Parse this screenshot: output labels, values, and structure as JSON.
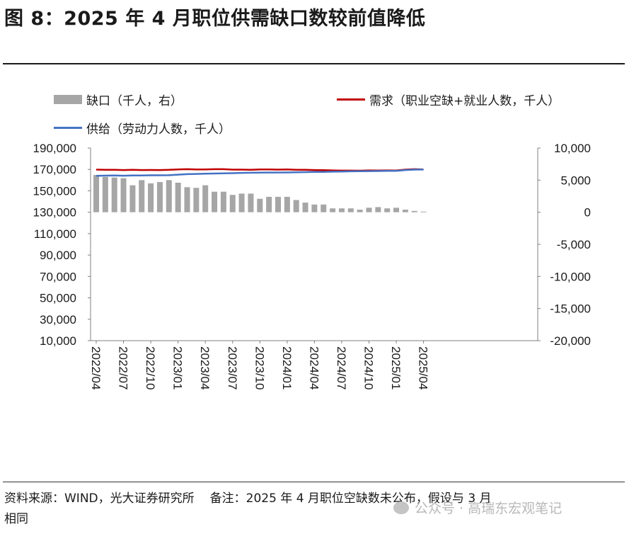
{
  "title": "图 8：2025 年 4 月职位供需缺口数较前值降低",
  "footnote": {
    "source": "资料来源：WIND，光大证券研究所",
    "note_line1": "备注：2025 年 4 月职位空缺数未公布，假设与 3 月",
    "note_line2": "相同"
  },
  "watermark": "公众号 · 高瑞东宏观笔记",
  "colors": {
    "gap": "#a6a6a6",
    "demand": "#c00000",
    "supply": "#4472c4"
  },
  "chart_data": {
    "type": "bar+line",
    "legend": [
      {
        "key": "gap",
        "label": "缺口（千人，右）",
        "kind": "bar"
      },
      {
        "key": "demand",
        "label": "需求（职业空缺+就业人数，千人）",
        "kind": "line"
      },
      {
        "key": "supply",
        "label": "供给（劳动力人数，千人）",
        "kind": "line"
      }
    ],
    "x_tick_labels": [
      "2022/04",
      "2022/07",
      "2022/10",
      "2023/01",
      "2023/04",
      "2023/07",
      "2023/10",
      "2024/01",
      "2024/04",
      "2024/07",
      "2024/10",
      "2025/01",
      "2025/04"
    ],
    "x": [
      "2022/04",
      "2022/05",
      "2022/06",
      "2022/07",
      "2022/08",
      "2022/09",
      "2022/10",
      "2022/11",
      "2022/12",
      "2023/01",
      "2023/02",
      "2023/03",
      "2023/04",
      "2023/05",
      "2023/06",
      "2023/07",
      "2023/08",
      "2023/09",
      "2023/10",
      "2023/11",
      "2023/12",
      "2024/01",
      "2024/02",
      "2024/03",
      "2024/04",
      "2024/05",
      "2024/06",
      "2024/07",
      "2024/08",
      "2024/09",
      "2024/10",
      "2024/11",
      "2024/12",
      "2025/01",
      "2025/02",
      "2025/03",
      "2025/04"
    ],
    "y_left": {
      "range": [
        10000,
        190000
      ],
      "ticks": [
        190000,
        170000,
        150000,
        130000,
        110000,
        90000,
        70000,
        50000,
        30000,
        10000
      ],
      "tick_labels": [
        "190,000",
        "170,000",
        "150,000",
        "130,000",
        "110,000",
        "90,000",
        "70,000",
        "50,000",
        "30,000",
        "10,000"
      ]
    },
    "y_right": {
      "range": [
        -20000,
        10000
      ],
      "ticks": [
        10000,
        5000,
        0,
        -5000,
        -10000,
        -15000,
        -20000
      ],
      "tick_labels": [
        "10,000",
        "5,000",
        "0",
        "-5,000",
        "-10,000",
        "-15,000",
        "-20,000"
      ]
    },
    "series": [
      {
        "name": "缺口（千人，右）",
        "axis": "right",
        "kind": "bar",
        "values": [
          5800,
          5500,
          5400,
          5300,
          4200,
          5000,
          4500,
          4700,
          5000,
          4600,
          3900,
          3800,
          4200,
          3200,
          3200,
          2700,
          2900,
          2900,
          2100,
          2400,
          2400,
          2400,
          1900,
          1500,
          1200,
          1200,
          600,
          600,
          600,
          400,
          700,
          800,
          600,
          700,
          400,
          200,
          100
        ]
      },
      {
        "name": "需求（职业空缺+就业人数，千人）",
        "axis": "left",
        "kind": "line",
        "values": [
          169800,
          169700,
          169700,
          169400,
          169600,
          169400,
          169500,
          169400,
          169600,
          170000,
          170200,
          170000,
          170000,
          170200,
          170200,
          169800,
          169800,
          169600,
          170000,
          170000,
          169800,
          170000,
          169700,
          169600,
          169400,
          169300,
          169100,
          168900,
          168900,
          168800,
          169100,
          169000,
          169100,
          169000,
          169800,
          170200,
          170000
        ]
      },
      {
        "name": "供给（劳动力人数，千人）",
        "axis": "left",
        "kind": "line",
        "values": [
          164000,
          164200,
          164300,
          164100,
          164400,
          164300,
          164500,
          164500,
          164600,
          165100,
          165600,
          165800,
          166000,
          166200,
          166400,
          166500,
          166800,
          166900,
          167000,
          167100,
          167100,
          167200,
          167300,
          167500,
          167600,
          167700,
          167900,
          168000,
          168200,
          168300,
          168400,
          168500,
          168600,
          168700,
          169400,
          169800,
          169900
        ]
      }
    ]
  }
}
